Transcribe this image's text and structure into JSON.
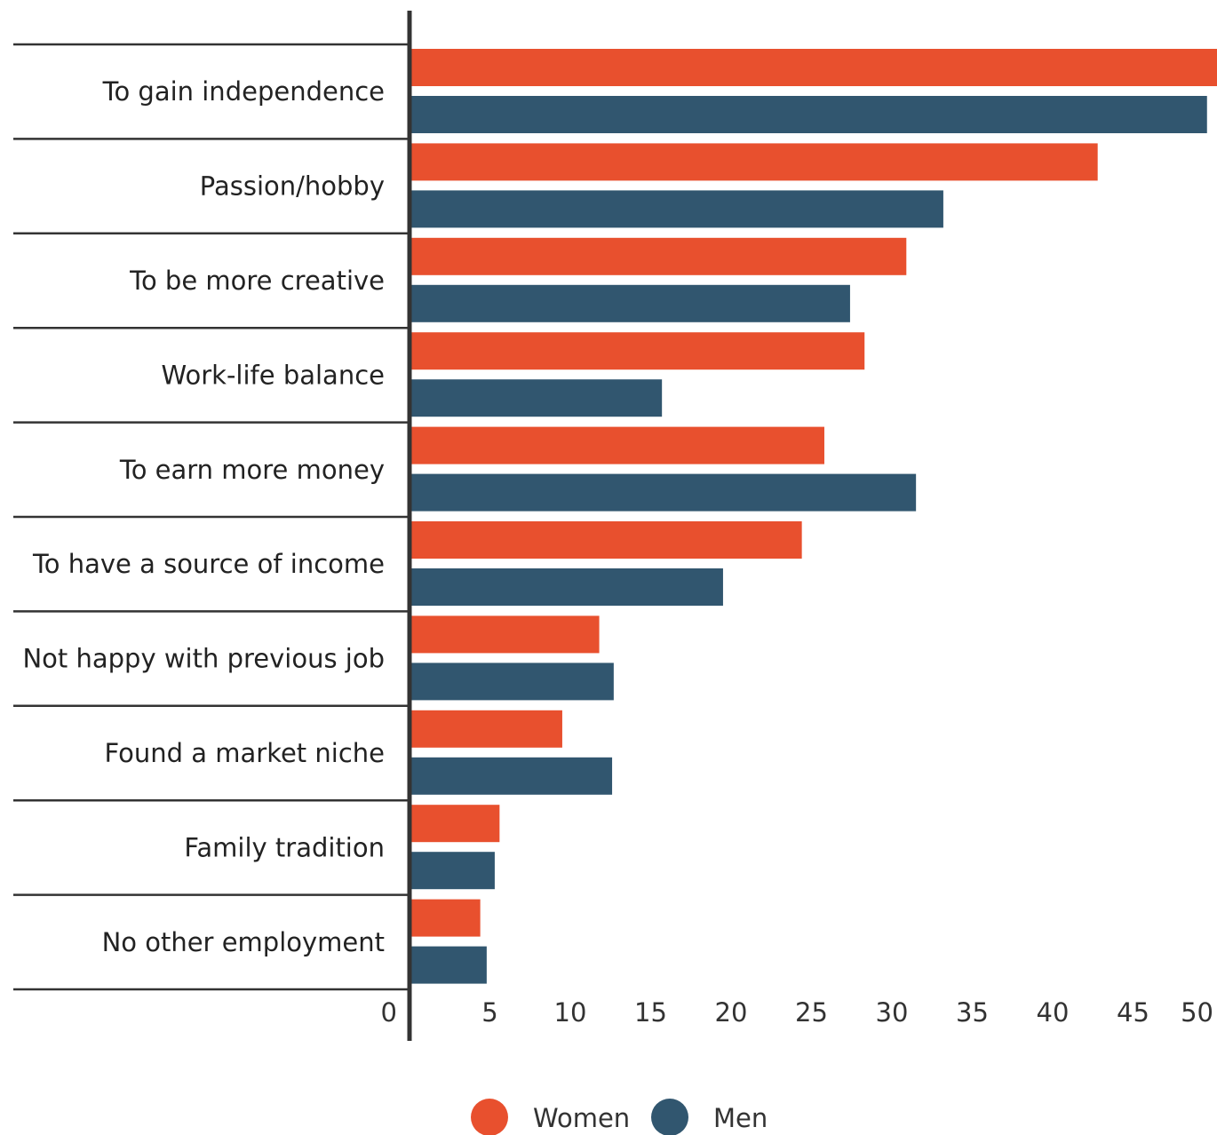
{
  "chart_data": {
    "type": "bar",
    "orientation": "horizontal",
    "categories": [
      "To gain independence",
      "Passion/hobby",
      "To be more creative",
      "Work-life balance",
      "To earn more money",
      "To have a source of income",
      "Not happy with previous job",
      "Found a market niche",
      "Family tradition",
      "No other employment"
    ],
    "series": [
      {
        "name": "Women",
        "color": "#e8502e",
        "values": [
          50.5,
          42.8,
          30.9,
          28.3,
          25.8,
          24.4,
          11.8,
          9.5,
          5.6,
          4.4
        ]
      },
      {
        "name": "Men",
        "color": "#31566f",
        "values": [
          49.6,
          33.2,
          27.4,
          15.7,
          31.5,
          19.5,
          12.7,
          12.6,
          5.3,
          4.8
        ]
      }
    ],
    "x_ticks": [
      "0",
      "5",
      "10",
      "15",
      "20",
      "25",
      "30",
      "35",
      "40",
      "45",
      "50"
    ],
    "xlim": [
      0,
      50
    ],
    "title": "",
    "xlabel": "",
    "ylabel": "",
    "grid": false,
    "legend_position": "bottom"
  }
}
